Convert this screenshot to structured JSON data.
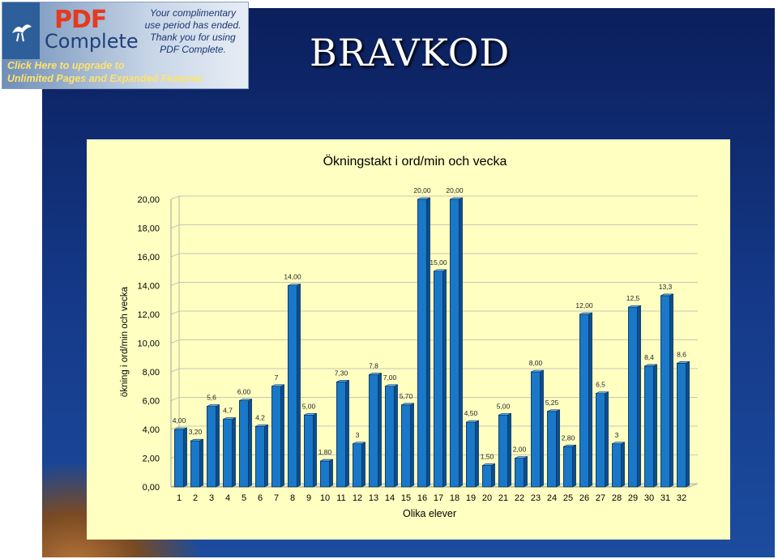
{
  "slide": {
    "title": "BRAVKOD"
  },
  "banner": {
    "pdf_word": "PDF",
    "complete_word": "Complete",
    "message_lines": [
      "Your complimentary",
      "use period has ended.",
      "Thank you for using",
      "PDF Complete."
    ],
    "upgrade_lines": [
      "Click Here to upgrade to",
      "Unlimited Pages and Expanded Features"
    ]
  },
  "chart_data": {
    "type": "bar",
    "title": "Ökningstakt i ord/min och vecka",
    "xlabel": "Olika elever",
    "ylabel": "ökning i ord/min och vecka",
    "ylim": [
      0,
      20
    ],
    "yticks": [
      "0,00",
      "2,00",
      "4,00",
      "6,00",
      "8,00",
      "10,00",
      "12,00",
      "14,00",
      "16,00",
      "18,00",
      "20,00"
    ],
    "categories": [
      "1",
      "2",
      "3",
      "4",
      "5",
      "6",
      "7",
      "8",
      "9",
      "10",
      "11",
      "12",
      "13",
      "14",
      "15",
      "16",
      "17",
      "18",
      "19",
      "20",
      "21",
      "22",
      "23",
      "24",
      "25",
      "26",
      "27",
      "28",
      "29",
      "30",
      "31",
      "32"
    ],
    "values": [
      4.0,
      3.2,
      5.6,
      4.7,
      6.0,
      4.2,
      7.0,
      14.0,
      5.0,
      1.8,
      7.3,
      3.0,
      7.8,
      7.0,
      5.7,
      20.0,
      15.0,
      20.0,
      4.5,
      1.5,
      5.0,
      2.0,
      8.0,
      5.25,
      2.8,
      12.0,
      6.5,
      3.0,
      12.5,
      8.4,
      13.3,
      8.6
    ],
    "data_labels": [
      "4,00",
      "3,20",
      "5,6",
      "4,7",
      "6,00",
      "4,2",
      "7",
      "14,00",
      "5,00",
      "1,80",
      "7,30",
      "3",
      "7,8",
      "7,00",
      "5,70",
      "20,00",
      "15,00",
      "20,00",
      "4,50",
      "1,50",
      "5,00",
      "2,00",
      "8,00",
      "5,25",
      "2,80",
      "12,00",
      "6,5",
      "3",
      "12,5",
      "8,4",
      "13,3",
      "8,6"
    ],
    "grid": true,
    "bar_color": "#1a78c8",
    "background": "#ffffc2"
  }
}
